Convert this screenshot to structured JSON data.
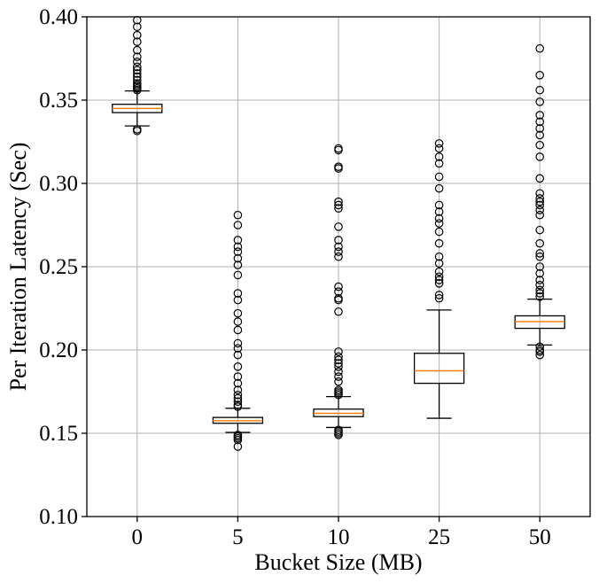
{
  "chart_data": {
    "type": "box",
    "xlabel": "Bucket Size (MB)",
    "ylabel": "Per Iteration Latency (Sec)",
    "ylim": [
      0.1,
      0.4
    ],
    "yticks": [
      "0.10",
      "0.15",
      "0.20",
      "0.25",
      "0.30",
      "0.35",
      "0.40"
    ],
    "categories": [
      "0",
      "5",
      "10",
      "25",
      "50"
    ],
    "grid": true,
    "median_color": "#ff7f0e",
    "boxes": [
      {
        "category": "0",
        "whisker_low": 0.3345,
        "q1": 0.3425,
        "median": 0.345,
        "q3": 0.3475,
        "whisker_high": 0.3555,
        "fliers": [
          0.398,
          0.394,
          0.389,
          0.385,
          0.38,
          0.376,
          0.373,
          0.37,
          0.368,
          0.366,
          0.364,
          0.362,
          0.36,
          0.359,
          0.358,
          0.357,
          0.356,
          0.3325,
          0.3315
        ]
      },
      {
        "category": "5",
        "whisker_low": 0.1505,
        "q1": 0.156,
        "median": 0.1575,
        "q3": 0.1595,
        "whisker_high": 0.165,
        "fliers": [
          0.281,
          0.275,
          0.266,
          0.262,
          0.259,
          0.255,
          0.251,
          0.245,
          0.234,
          0.23,
          0.222,
          0.217,
          0.212,
          0.204,
          0.201,
          0.197,
          0.19,
          0.184,
          0.18,
          0.176,
          0.173,
          0.171,
          0.169,
          0.167,
          0.166,
          0.149,
          0.148,
          0.147,
          0.146,
          0.142
        ]
      },
      {
        "category": "10",
        "whisker_low": 0.1535,
        "q1": 0.16,
        "median": 0.162,
        "q3": 0.1645,
        "whisker_high": 0.172,
        "fliers": [
          0.321,
          0.32,
          0.31,
          0.309,
          0.289,
          0.287,
          0.285,
          0.274,
          0.266,
          0.262,
          0.259,
          0.256,
          0.238,
          0.235,
          0.231,
          0.23,
          0.223,
          0.199,
          0.196,
          0.194,
          0.192,
          0.19,
          0.187,
          0.184,
          0.181,
          0.176,
          0.175,
          0.174,
          0.173,
          0.152,
          0.151,
          0.15,
          0.149
        ]
      },
      {
        "category": "25",
        "whisker_low": 0.159,
        "q1": 0.18,
        "median": 0.1875,
        "q3": 0.198,
        "whisker_high": 0.224,
        "fliers": [
          0.324,
          0.321,
          0.316,
          0.312,
          0.304,
          0.297,
          0.287,
          0.283,
          0.279,
          0.276,
          0.271,
          0.264,
          0.256,
          0.252,
          0.247,
          0.244,
          0.242,
          0.24,
          0.233,
          0.231
        ]
      },
      {
        "category": "50",
        "whisker_low": 0.203,
        "q1": 0.213,
        "median": 0.217,
        "q3": 0.2205,
        "whisker_high": 0.2305,
        "fliers": [
          0.381,
          0.365,
          0.356,
          0.349,
          0.341,
          0.337,
          0.333,
          0.329,
          0.323,
          0.316,
          0.303,
          0.294,
          0.291,
          0.289,
          0.287,
          0.284,
          0.281,
          0.272,
          0.264,
          0.258,
          0.256,
          0.25,
          0.246,
          0.242,
          0.239,
          0.236,
          0.234,
          0.232,
          0.202,
          0.2,
          0.199,
          0.197
        ]
      }
    ]
  }
}
